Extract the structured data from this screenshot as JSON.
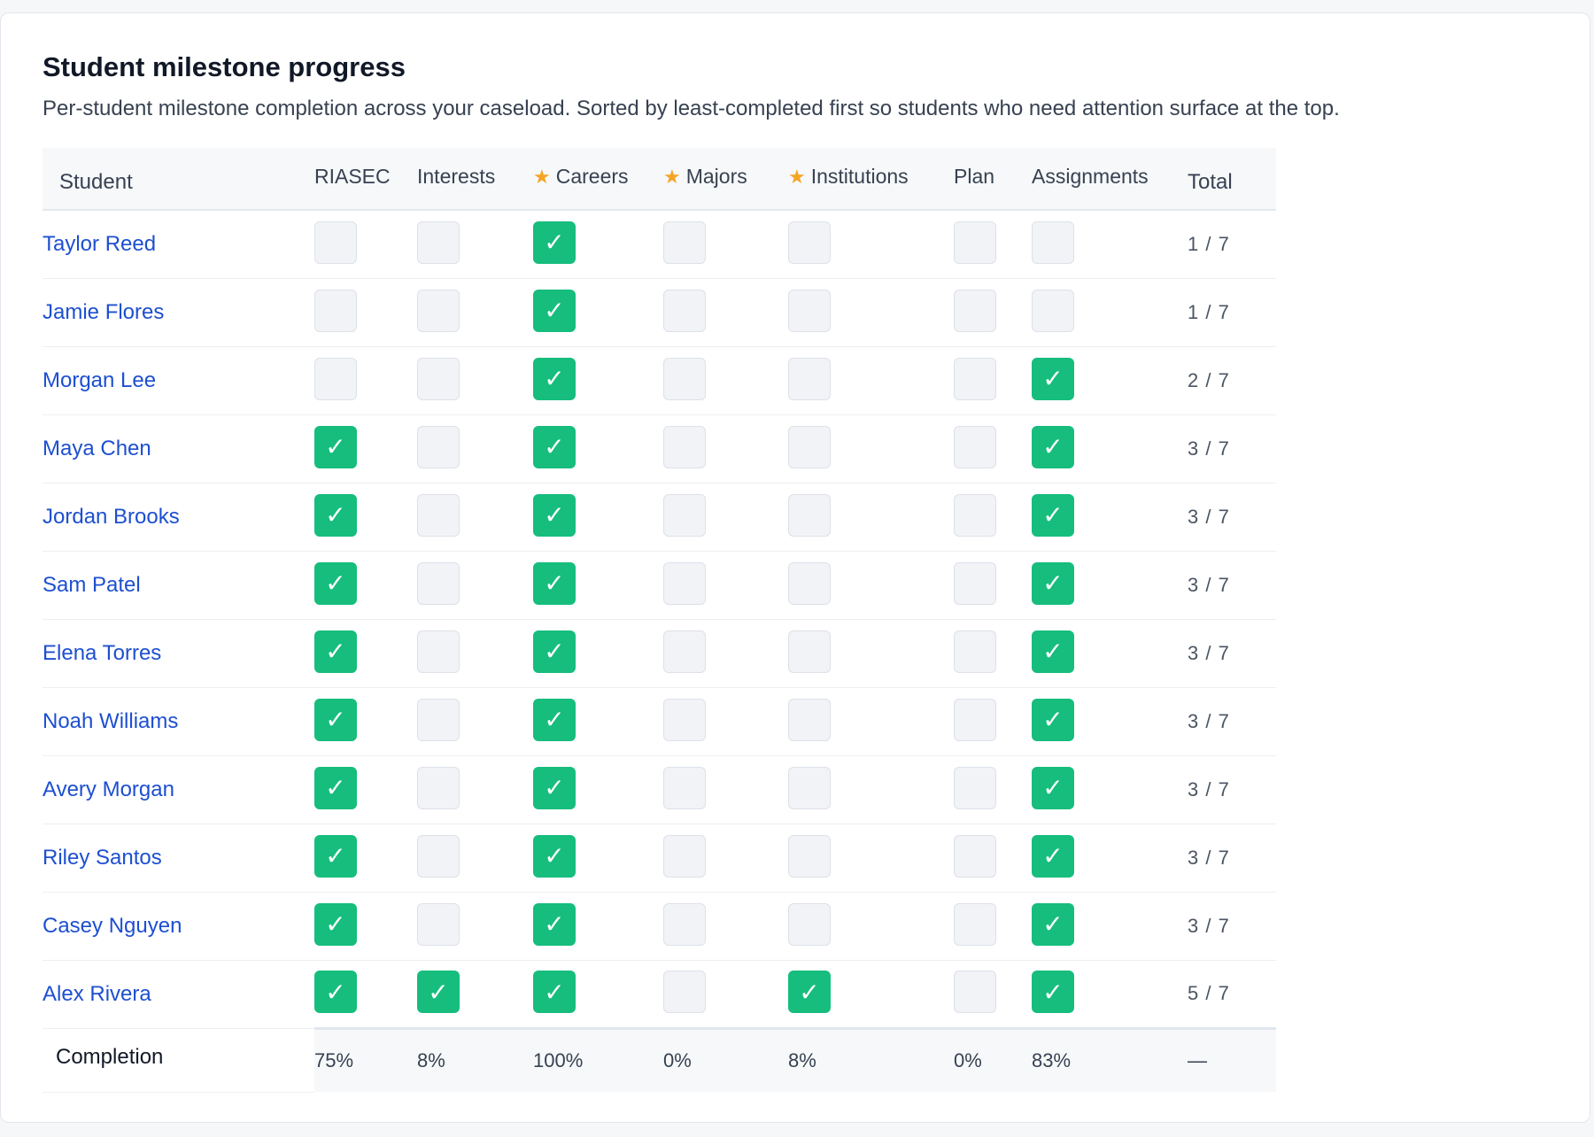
{
  "card": {
    "title": "Student milestone progress",
    "subtitle": "Per-student milestone completion across your caseload. Sorted by least-completed first so students who need attention surface at the top."
  },
  "columns": {
    "student": "Student",
    "total": "Total",
    "milestones": [
      {
        "label": "RIASEC",
        "starred": false
      },
      {
        "label": "Interests",
        "starred": false
      },
      {
        "label": "Careers",
        "starred": true
      },
      {
        "label": "Majors",
        "starred": true
      },
      {
        "label": "Institutions",
        "starred": true
      },
      {
        "label": "Plan",
        "starred": false
      },
      {
        "label": "Assignments",
        "starred": false
      }
    ]
  },
  "star_glyph": "★",
  "check_glyph": "✓",
  "colors": {
    "complete": "#16bd7d",
    "incomplete": "#f1f3f7",
    "link": "#1d4fd0",
    "star": "#f5a524"
  },
  "students": [
    {
      "name": "Taylor Reed",
      "done": [
        false,
        false,
        true,
        false,
        false,
        false,
        false
      ],
      "total": "1 / 7"
    },
    {
      "name": "Jamie Flores",
      "done": [
        false,
        false,
        true,
        false,
        false,
        false,
        false
      ],
      "total": "1 / 7"
    },
    {
      "name": "Morgan Lee",
      "done": [
        false,
        false,
        true,
        false,
        false,
        false,
        true
      ],
      "total": "2 / 7"
    },
    {
      "name": "Maya Chen",
      "done": [
        true,
        false,
        true,
        false,
        false,
        false,
        true
      ],
      "total": "3 / 7"
    },
    {
      "name": "Jordan Brooks",
      "done": [
        true,
        false,
        true,
        false,
        false,
        false,
        true
      ],
      "total": "3 / 7"
    },
    {
      "name": "Sam Patel",
      "done": [
        true,
        false,
        true,
        false,
        false,
        false,
        true
      ],
      "total": "3 / 7"
    },
    {
      "name": "Elena Torres",
      "done": [
        true,
        false,
        true,
        false,
        false,
        false,
        true
      ],
      "total": "3 / 7"
    },
    {
      "name": "Noah Williams",
      "done": [
        true,
        false,
        true,
        false,
        false,
        false,
        true
      ],
      "total": "3 / 7"
    },
    {
      "name": "Avery Morgan",
      "done": [
        true,
        false,
        true,
        false,
        false,
        false,
        true
      ],
      "total": "3 / 7"
    },
    {
      "name": "Riley Santos",
      "done": [
        true,
        false,
        true,
        false,
        false,
        false,
        true
      ],
      "total": "3 / 7"
    },
    {
      "name": "Casey Nguyen",
      "done": [
        true,
        false,
        true,
        false,
        false,
        false,
        true
      ],
      "total": "3 / 7"
    },
    {
      "name": "Alex Rivera",
      "done": [
        true,
        true,
        true,
        false,
        true,
        false,
        true
      ],
      "total": "5 / 7"
    }
  ],
  "completion": {
    "label": "Completion",
    "values": [
      "75%",
      "8%",
      "100%",
      "0%",
      "8%",
      "0%",
      "83%"
    ],
    "total": "—"
  }
}
